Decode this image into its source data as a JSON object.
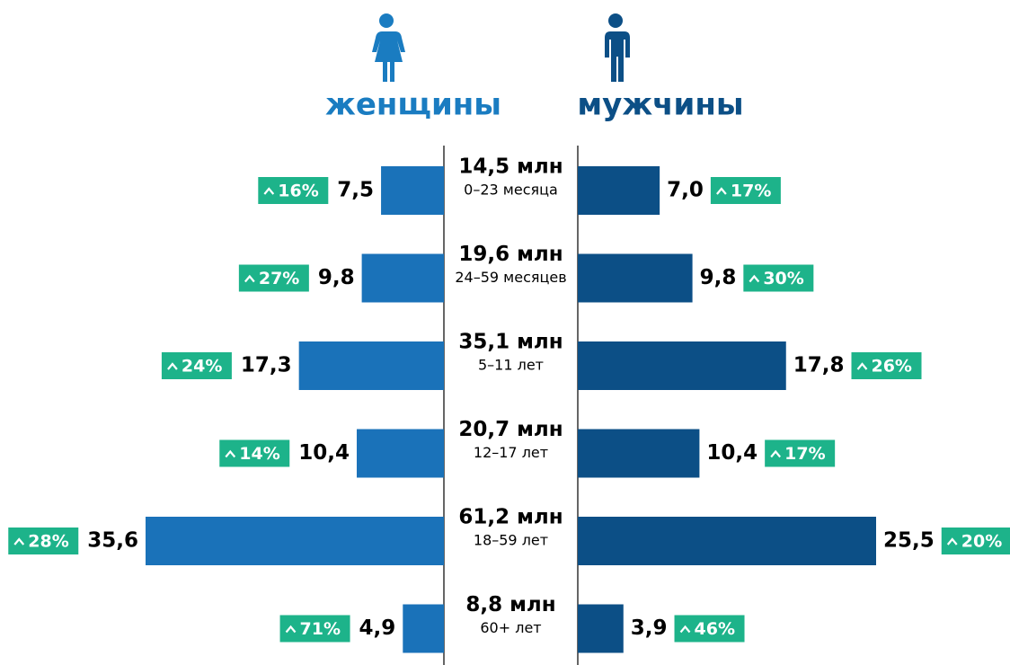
{
  "chart_data": {
    "type": "pyramid",
    "categories": [
      "0–23 месяца",
      "24–59 месяцев",
      "5–11 лет",
      "12–17 лет",
      "18–59 лет",
      "60+ лет"
    ],
    "totals": [
      "14,5 млн",
      "19,6 млн",
      "35,1 млн",
      "20,7 млн",
      "61,2 млн",
      "8,8 млн"
    ],
    "series": [
      {
        "name": "женщины",
        "color": "#1a72b9",
        "title_color": "#1a7cc1",
        "xlim": [
          0,
          35.6
        ],
        "values": [
          7.5,
          9.8,
          17.3,
          10.4,
          35.6,
          4.9
        ],
        "value_labels": [
          "7,5",
          "9,8",
          "17,3",
          "10,4",
          "35,6",
          "4,9"
        ],
        "badges": [
          "16%",
          "27%",
          "24%",
          "14%",
          "28%",
          "71%"
        ]
      },
      {
        "name": "мужчины",
        "color": "#0c4f86",
        "title_color": "#0c4f86",
        "xlim": [
          0,
          25.5
        ],
        "values": [
          7.0,
          9.8,
          17.8,
          10.4,
          25.5,
          3.9
        ],
        "value_labels": [
          "7,0",
          "9,8",
          "17,8",
          "10,4",
          "25,5",
          "3,9"
        ],
        "badges": [
          "17%",
          "30%",
          "26%",
          "17%",
          "20%",
          "46%"
        ]
      }
    ],
    "badge_color": "#1db38a"
  }
}
